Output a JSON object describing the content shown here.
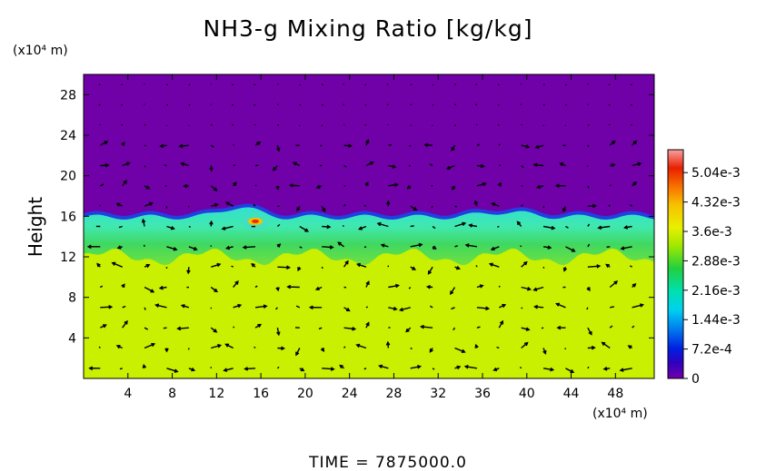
{
  "chart_data": {
    "type": "heatmap",
    "title": "NH3-g Mixing Ratio [kg/kg]",
    "ylabel": "Height",
    "x_unit_label": "(x10⁴ m)",
    "y_unit_label": "(x10⁴ m)",
    "xlim": [
      0,
      51.5
    ],
    "ylim": [
      0,
      30
    ],
    "x_ticks": [
      "4",
      "8",
      "12",
      "16",
      "20",
      "24",
      "28",
      "32",
      "36",
      "40",
      "44",
      "48"
    ],
    "y_ticks": [
      "4",
      "8",
      "12",
      "16",
      "20",
      "24",
      "28"
    ],
    "colorbar": {
      "min": 0,
      "max": 0.0056,
      "tick_labels": [
        "0",
        "7.2e-4",
        "1.44e-3",
        "2.16e-3",
        "2.88e-3",
        "3.6e-3",
        "4.32e-3",
        "5.04e-3"
      ],
      "tick_values": [
        0,
        0.00072,
        0.00144,
        0.00216,
        0.00288,
        0.0036,
        0.00432,
        0.00504
      ]
    },
    "layers": [
      {
        "label": "upper layer",
        "y_range": [
          17,
          30
        ],
        "value": 0
      },
      {
        "label": "transition band",
        "y_range": [
          12,
          17
        ],
        "value": 0.0022
      },
      {
        "label": "lower layer",
        "y_range": [
          0,
          12
        ],
        "value": 0.0033
      },
      {
        "label": "local maximum",
        "x": 15.5,
        "y": 15.5,
        "value": 0.0045
      }
    ],
    "overlay": "wind vectors",
    "time_label": "TIME = 7875000.0"
  },
  "colors": {
    "upper": "#7000a8",
    "lower": "#c8f000",
    "band_green": "#30d050",
    "band_cyan": "#40e0c0",
    "band_blue": "#2040e0",
    "hot": "#e83000"
  }
}
